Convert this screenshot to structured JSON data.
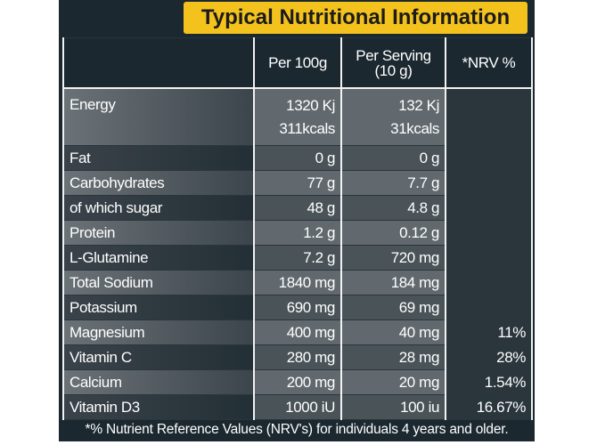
{
  "title": "Typical Nutritional Information",
  "table": {
    "headers": {
      "per_100g": "Per 100g",
      "per_serving": [
        "Per Serving",
        "(10 g)"
      ],
      "nrv": "*NRV %"
    },
    "rows": [
      {
        "nutrient": "Energy",
        "per_100g": [
          "1320 Kj",
          "311kcals"
        ],
        "per_serving": [
          "132 Kj",
          "31kcals"
        ]
      },
      {
        "nutrient": "Fat",
        "per_100g": "0 g",
        "per_serving": "0 g"
      },
      {
        "nutrient": "Carbohydrates",
        "per_100g": "77 g",
        "per_serving": "7.7 g"
      },
      {
        "nutrient": "of which sugar",
        "per_100g": "48 g",
        "per_serving": "4.8 g"
      },
      {
        "nutrient": "Protein",
        "per_100g": "1.2 g",
        "per_serving": "0.12 g"
      },
      {
        "nutrient": "L-Glutamine",
        "per_100g": "7.2 g",
        "per_serving": "720 mg"
      },
      {
        "nutrient": "Total Sodium",
        "per_100g": "1840 mg",
        "per_serving": "184 mg"
      },
      {
        "nutrient": "Potassium",
        "per_100g": "690 mg",
        "per_serving": "69 mg"
      },
      {
        "nutrient": "Magnesium",
        "per_100g": "400 mg",
        "per_serving": "40 mg",
        "nrv": "11%"
      },
      {
        "nutrient": "Vitamin C",
        "per_100g": "280 mg",
        "per_serving": "28 mg",
        "nrv": "28%"
      },
      {
        "nutrient": "Calcium",
        "per_100g": "200 mg",
        "per_serving": "20 mg",
        "nrv": "1.54%"
      },
      {
        "nutrient": "Vitamin D3",
        "per_100g": "1000 iU",
        "per_serving": "100 iu",
        "nrv": "16.67%"
      }
    ]
  },
  "footnote": "*% Nutrient Reference Values (NRV's) for individuals 4 years and older."
}
